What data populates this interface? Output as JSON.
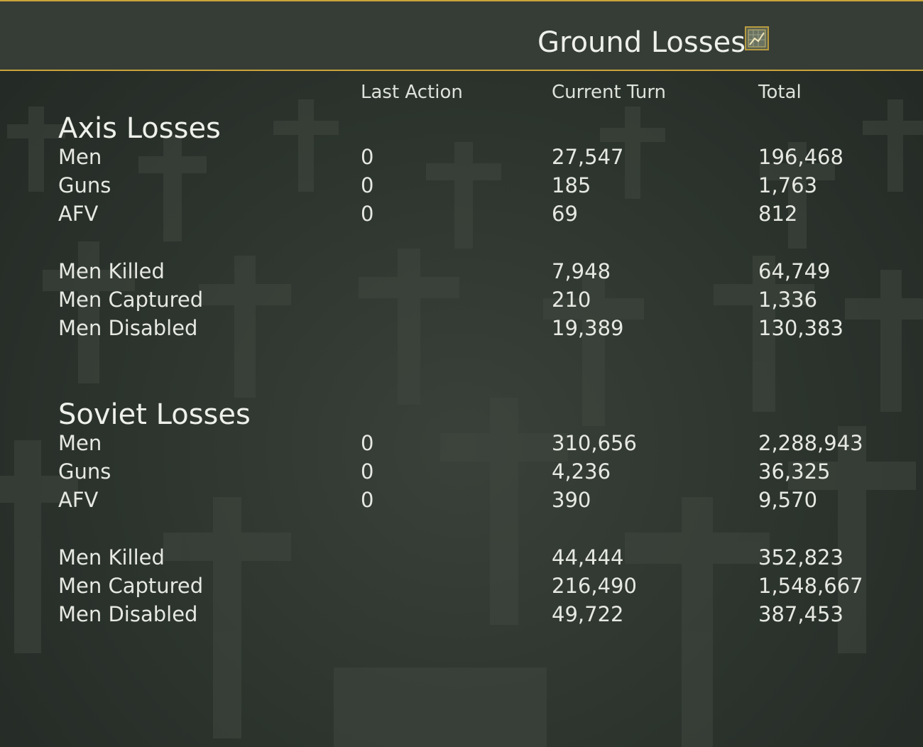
{
  "header": {
    "title": "Ground Losses",
    "chart_button_icon": "chart-icon"
  },
  "columns": {
    "last_action": "Last Action",
    "current_turn": "Current Turn",
    "total": "Total"
  },
  "axis": {
    "title": "Axis Losses",
    "rows": [
      {
        "label": "Men",
        "last_action": "0",
        "current_turn": "27,547",
        "total": "196,468"
      },
      {
        "label": "Guns",
        "last_action": "0",
        "current_turn": "185",
        "total": "1,763"
      },
      {
        "label": "AFV",
        "last_action": "0",
        "current_turn": "69",
        "total": "812"
      },
      {
        "label": "Men Killed",
        "last_action": "",
        "current_turn": "7,948",
        "total": "64,749"
      },
      {
        "label": "Men Captured",
        "last_action": "",
        "current_turn": "210",
        "total": "1,336"
      },
      {
        "label": "Men Disabled",
        "last_action": "",
        "current_turn": "19,389",
        "total": "130,383"
      }
    ]
  },
  "soviet": {
    "title": "Soviet Losses",
    "rows": [
      {
        "label": "Men",
        "last_action": "0",
        "current_turn": "310,656",
        "total": "2,288,943"
      },
      {
        "label": "Guns",
        "last_action": "0",
        "current_turn": "4,236",
        "total": "36,325"
      },
      {
        "label": "AFV",
        "last_action": "0",
        "current_turn": "390",
        "total": "9,570"
      },
      {
        "label": "Men Killed",
        "last_action": "",
        "current_turn": "44,444",
        "total": "352,823"
      },
      {
        "label": "Men Captured",
        "last_action": "",
        "current_turn": "216,490",
        "total": "1,548,667"
      },
      {
        "label": "Men Disabled",
        "last_action": "",
        "current_turn": "49,722",
        "total": "387,453"
      }
    ]
  },
  "colors": {
    "accent": "#c9a43a",
    "background": "#2b322c",
    "text": "#e6e9e2"
  }
}
